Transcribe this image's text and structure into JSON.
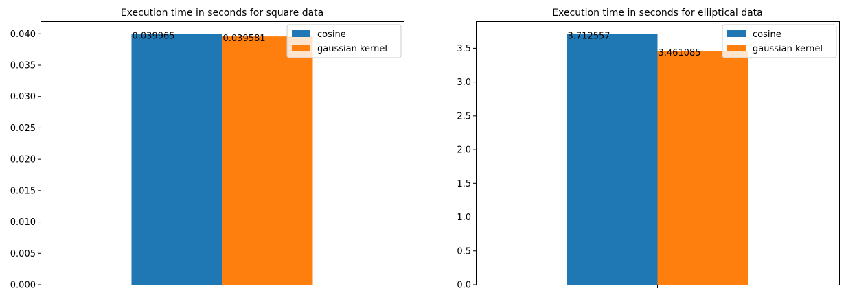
{
  "chart_data": [
    {
      "type": "bar",
      "title": "Execution time in seconds for square data",
      "xlabel": "",
      "ylabel": "",
      "categories": [
        ""
      ],
      "series": [
        {
          "name": "cosine",
          "values": [
            0.039965
          ],
          "color": "#1f77b4"
        },
        {
          "name": "gaussian kernel",
          "values": [
            0.039581
          ],
          "color": "#ff7f0e"
        }
      ],
      "data_labels": [
        "0.039965",
        "0.039581"
      ],
      "ylim": [
        0,
        0.042
      ],
      "yticks": [
        0.0,
        0.005,
        0.01,
        0.015,
        0.02,
        0.025,
        0.03,
        0.035,
        0.04
      ],
      "ytick_labels": [
        "0.000",
        "0.005",
        "0.010",
        "0.015",
        "0.020",
        "0.025",
        "0.030",
        "0.035",
        "0.040"
      ],
      "legend": "top-right",
      "grid": false
    },
    {
      "type": "bar",
      "title": "Execution time in seconds for elliptical data",
      "xlabel": "",
      "ylabel": "",
      "categories": [
        ""
      ],
      "series": [
        {
          "name": "cosine",
          "values": [
            3.712557
          ],
          "color": "#1f77b4"
        },
        {
          "name": "gaussian kernel",
          "values": [
            3.461085
          ],
          "color": "#ff7f0e"
        }
      ],
      "data_labels": [
        "3.712557",
        "3.461085"
      ],
      "ylim": [
        0,
        3.9
      ],
      "yticks": [
        0.0,
        0.5,
        1.0,
        1.5,
        2.0,
        2.5,
        3.0,
        3.5
      ],
      "ytick_labels": [
        "0.0",
        "0.5",
        "1.0",
        "1.5",
        "2.0",
        "2.5",
        "3.0",
        "3.5"
      ],
      "legend": "top-right",
      "grid": false
    }
  ]
}
